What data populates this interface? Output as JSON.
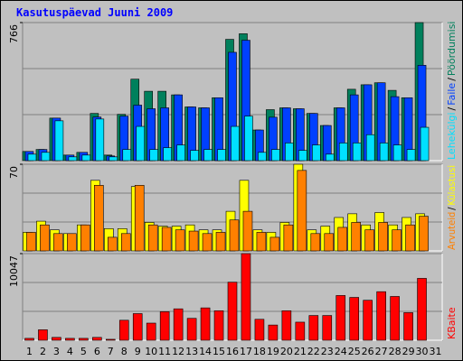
{
  "title": "Kasutuspäevad Juuni 2009",
  "categories": [
    "1",
    "2",
    "3",
    "4",
    "5",
    "6",
    "7",
    "8",
    "9",
    "10",
    "11",
    "12",
    "13",
    "14",
    "15",
    "16",
    "17",
    "18",
    "19",
    "20",
    "21",
    "22",
    "23",
    "24",
    "25",
    "26",
    "27",
    "28",
    "29",
    "30",
    "31"
  ],
  "category_colors": [
    "#000000",
    "#000000",
    "#000000",
    "#000000",
    "#000000",
    "#008040",
    "#008040",
    "#000000",
    "#000000",
    "#000000",
    "#000000",
    "#000000",
    "#008040",
    "#008040",
    "#000000",
    "#000000",
    "#000000",
    "#000000",
    "#000000",
    "#008040",
    "#008040",
    "#000000",
    "#000000",
    "#000000",
    "#000000",
    "#000000",
    "#008040",
    "#008040",
    "#000000",
    "#000000",
    "#000000"
  ],
  "legend_separator": "/",
  "chart_data": [
    {
      "type": "bar",
      "ylim": [
        0,
        766
      ],
      "yticks": [
        766
      ],
      "grid": true,
      "series": [
        {
          "name": "Pöördumisi",
          "color": "#00805c",
          "values": [
            51,
            62,
            236,
            31,
            46,
            262,
            31,
            257,
            452,
            385,
            385,
            365,
            298,
            293,
            349,
            673,
            704,
            170,
            283,
            293,
            288,
            262,
            195,
            293,
            396,
            421,
            432,
            390,
            349,
            766,
            0
          ]
        },
        {
          "name": "Faile",
          "color": "#0040ff",
          "values": [
            51,
            62,
            236,
            31,
            46,
            242,
            26,
            247,
            308,
            288,
            293,
            365,
            298,
            293,
            349,
            601,
            668,
            170,
            241,
            293,
            288,
            262,
            195,
            293,
            365,
            421,
            432,
            355,
            349,
            529,
            0
          ]
        },
        {
          "name": "Lehekülgi",
          "color": "#00e0ff",
          "values": [
            36,
            46,
            221,
            21,
            31,
            231,
            21,
            62,
            190,
            62,
            72,
            87,
            57,
            62,
            62,
            190,
            247,
            46,
            62,
            98,
            57,
            87,
            36,
            98,
            98,
            144,
            98,
            87,
            62,
            185,
            0
          ]
        }
      ]
    },
    {
      "type": "bar",
      "ylim": [
        0,
        70
      ],
      "yticks": [
        70
      ],
      "grid": true,
      "series": [
        {
          "name": "Külastusi",
          "color": "#ffff00",
          "values": [
            15,
            24,
            17,
            14,
            21,
            57,
            18,
            18,
            52,
            23,
            20,
            20,
            21,
            17,
            17,
            32,
            57,
            17,
            15,
            23,
            70,
            17,
            20,
            27,
            30,
            21,
            31,
            21,
            27,
            30,
            0
          ]
        },
        {
          "name": "Arvuteid",
          "color": "#ff8000",
          "values": [
            15,
            21,
            14,
            14,
            21,
            53,
            11,
            14,
            53,
            21,
            19,
            17,
            16,
            14,
            15,
            25,
            32,
            15,
            11,
            21,
            65,
            14,
            14,
            19,
            23,
            17,
            23,
            17,
            21,
            28,
            0
          ]
        }
      ]
    },
    {
      "type": "bar",
      "ylim": [
        0,
        10047
      ],
      "yticks": [
        10047
      ],
      "grid": true,
      "series": [
        {
          "name": "KBaite",
          "color": "#ff0000",
          "values": [
            220,
            1214,
            331,
            220,
            220,
            331,
            110,
            2318,
            3091,
            1987,
            3312,
            3643,
            2539,
            3754,
            3422,
            6735,
            10047,
            2429,
            1766,
            3422,
            2098,
            2870,
            2870,
            5189,
            4968,
            4637,
            5631,
            5079,
            3202,
            7177,
            0
          ]
        }
      ]
    }
  ]
}
